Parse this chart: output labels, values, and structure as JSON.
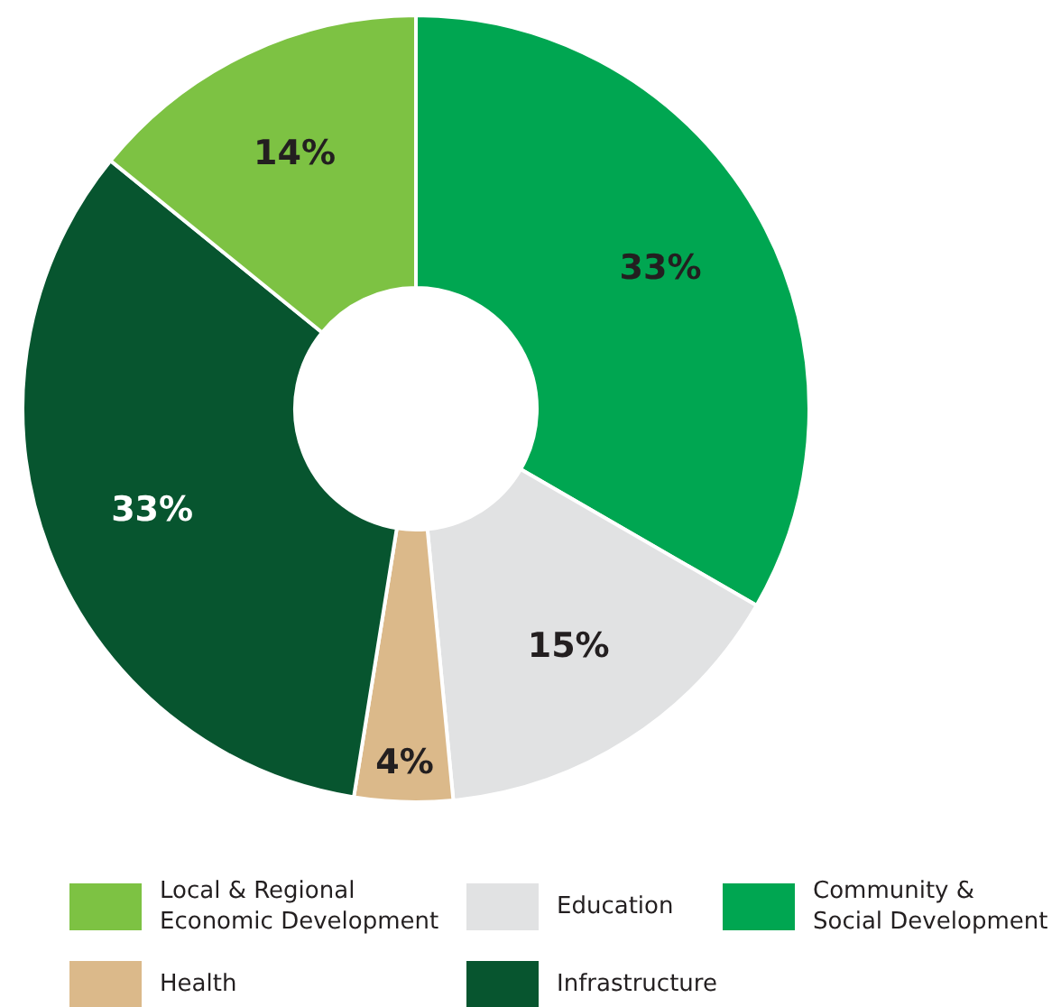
{
  "chart_data": {
    "type": "donut",
    "categories": [
      "Community & Social Development",
      "Education",
      "Health",
      "Infrastructure",
      "Local & Regional Economic Development"
    ],
    "values": [
      33,
      15,
      4,
      33,
      14
    ],
    "colors": [
      "#00a651",
      "#e1e2e3",
      "#dbb98a",
      "#07552f",
      "#7dc243"
    ],
    "value_labels": [
      "33%",
      "15%",
      "4%",
      "33%",
      "14%"
    ],
    "legend": "bottom"
  }
}
